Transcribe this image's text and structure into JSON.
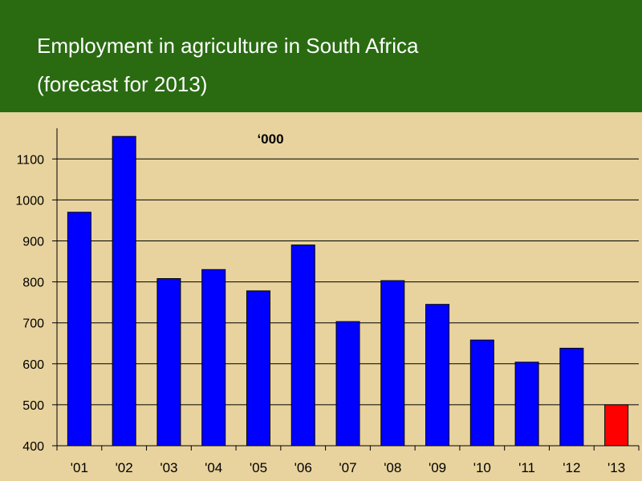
{
  "header": {
    "title_line1": "Employment in agriculture in South Africa",
    "title_line2": "(forecast for 2013)"
  },
  "chart_data": {
    "type": "bar",
    "unit_label": "‘000",
    "categories": [
      "'01",
      "'02",
      "'03",
      "'04",
      "'05",
      "'06",
      "'07",
      "'08",
      "'09",
      "'10",
      "'11",
      "'12",
      "'13"
    ],
    "values": [
      970,
      1155,
      808,
      830,
      778,
      890,
      703,
      803,
      745,
      658,
      604,
      638,
      500
    ],
    "bar_colors": [
      "#0000ff",
      "#0000ff",
      "#0000ff",
      "#0000ff",
      "#0000ff",
      "#0000ff",
      "#0000ff",
      "#0000ff",
      "#0000ff",
      "#0000ff",
      "#0000ff",
      "#0000ff",
      "#ff0000"
    ],
    "ylim": [
      400,
      1160
    ],
    "yticks": [
      400,
      500,
      600,
      700,
      800,
      900,
      1000,
      1100
    ],
    "grid": true,
    "colors": {
      "background": "#e8d39e",
      "header": "#2a6b12",
      "bar": "#0000ff",
      "forecast_bar": "#ff0000"
    }
  }
}
